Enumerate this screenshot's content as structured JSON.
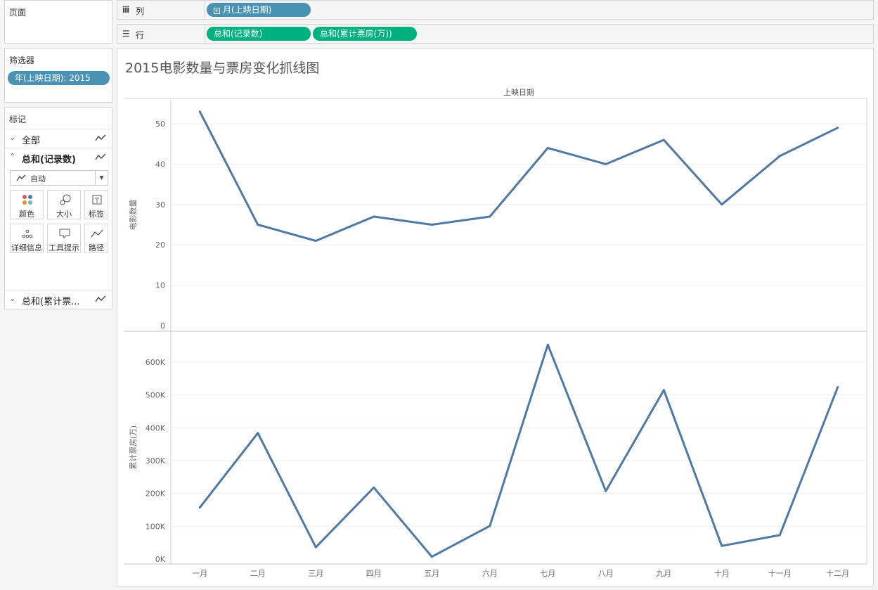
{
  "pages": {
    "title": "页面"
  },
  "shelves": {
    "columns": {
      "label": "列",
      "pill": "月(上映日期)"
    },
    "rows": {
      "label": "行",
      "pills": [
        "总和(记录数)",
        "总和(累计票房(万))"
      ]
    }
  },
  "filters": {
    "title": "筛选器",
    "pill": "年(上映日期): 2015"
  },
  "marks": {
    "title": "标记",
    "all": "全部",
    "record_count": "总和(记录数)",
    "mark_type": "自动",
    "buttons": {
      "color": "颜色",
      "size": "大小",
      "label": "标签",
      "detail": "详细信息",
      "tooltip": "工具提示",
      "path": "路径"
    },
    "box_office": "总和(累计票..."
  },
  "colors": {
    "line": "#4e79a7",
    "pill_blue": "#4a92b4",
    "pill_green": "#00b180"
  },
  "chart_data": {
    "type": "line",
    "title": "2015电影数量与票房变化抓线图",
    "header": "上映日期",
    "categories": [
      "一月",
      "二月",
      "三月",
      "四月",
      "五月",
      "六月",
      "七月",
      "八月",
      "九月",
      "十月",
      "十一月",
      "十二月"
    ],
    "panes": [
      {
        "ylabel": "电影数量",
        "ylim": [
          0,
          55
        ],
        "ticks": [
          0,
          10,
          20,
          30,
          40,
          50
        ],
        "tick_labels": [
          "0",
          "10",
          "20",
          "30",
          "40",
          "50"
        ],
        "values": [
          53,
          25,
          21,
          27,
          25,
          27,
          44,
          40,
          46,
          30,
          42,
          49
        ]
      },
      {
        "ylabel": "累计票房(万)",
        "ylim": [
          0,
          680000
        ],
        "ticks": [
          0,
          100000,
          200000,
          300000,
          400000,
          500000,
          600000
        ],
        "tick_labels": [
          "0K",
          "100K",
          "200K",
          "300K",
          "400K",
          "500K",
          "600K"
        ],
        "values": [
          157000,
          384000,
          36000,
          218000,
          7000,
          101000,
          653000,
          207000,
          515000,
          40000,
          73000,
          524000
        ]
      }
    ],
    "grid": true
  }
}
